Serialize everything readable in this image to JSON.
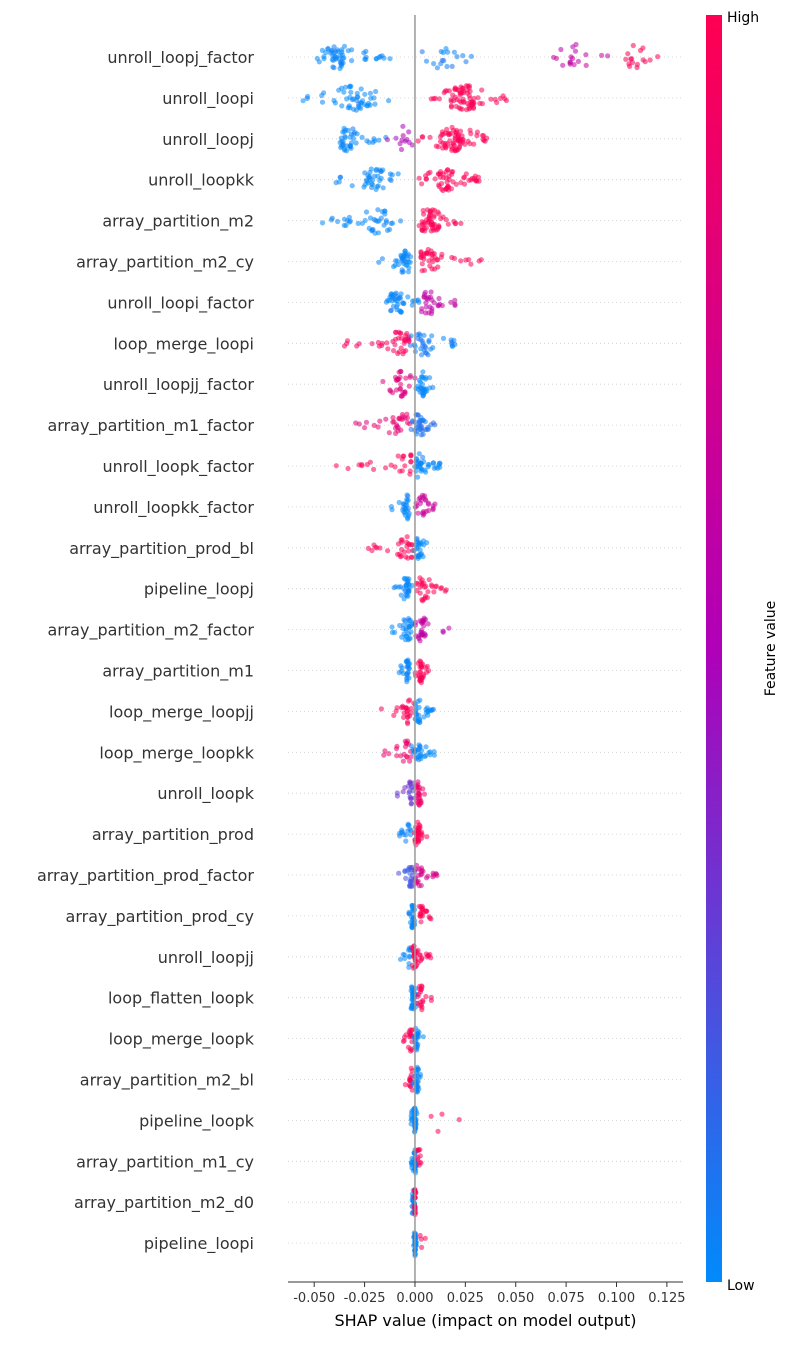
{
  "chart_data": {
    "type": "scatter",
    "subtype": "shap-beeswarm",
    "title": "",
    "xlabel": "SHAP value (impact on model output)",
    "ylabel": "",
    "xlim": [
      -0.063,
      0.133
    ],
    "x_ticks": [
      "-0.050",
      "-0.025",
      "0.000",
      "0.025",
      "0.050",
      "0.075",
      "0.100",
      "0.125"
    ],
    "x_tick_values": [
      -0.05,
      -0.025,
      0.0,
      0.025,
      0.05,
      0.075,
      0.1,
      0.125
    ],
    "zero_line": 0.0,
    "colorbar": {
      "label": "Feature value",
      "high_label": "High",
      "low_label": "Low",
      "low_color": "#008bfb",
      "high_color": "#ff0052",
      "mid_color": "#b000b8"
    },
    "features": [
      {
        "name": "unroll_loopj_factor",
        "ranges": [
          {
            "xmin": -0.053,
            "xmax": -0.012,
            "value": 0.0,
            "dense": -0.039,
            "n": 55
          },
          {
            "xmin": 0.002,
            "xmax": 0.03,
            "value": 0.05,
            "dense": 0.014,
            "n": 18
          },
          {
            "xmin": 0.066,
            "xmax": 0.1,
            "value": 0.6,
            "dense": 0.08,
            "n": 18
          },
          {
            "xmin": 0.1,
            "xmax": 0.125,
            "value": 1.0,
            "dense": 0.11,
            "n": 16
          }
        ]
      },
      {
        "name": "unroll_loopi",
        "ranges": [
          {
            "xmin": -0.056,
            "xmax": -0.013,
            "value": 0.0,
            "dense": -0.03,
            "n": 50
          },
          {
            "xmin": 0.006,
            "xmax": 0.048,
            "value": 1.0,
            "dense": 0.025,
            "n": 75
          }
        ]
      },
      {
        "name": "unroll_loopj",
        "ranges": [
          {
            "xmin": -0.04,
            "xmax": -0.014,
            "value": 0.0,
            "dense": -0.033,
            "n": 40
          },
          {
            "xmin": -0.014,
            "xmax": 0.0,
            "value": 0.5,
            "dense": -0.006,
            "n": 12
          },
          {
            "xmin": 0.0,
            "xmax": 0.036,
            "value": 1.0,
            "dense": 0.02,
            "n": 75
          }
        ]
      },
      {
        "name": "unroll_loopkk",
        "ranges": [
          {
            "xmin": -0.04,
            "xmax": -0.007,
            "value": 0.0,
            "dense": -0.02,
            "n": 40
          },
          {
            "xmin": 0.002,
            "xmax": 0.032,
            "value": 1.0,
            "dense": 0.016,
            "n": 55
          }
        ]
      },
      {
        "name": "array_partition_m2",
        "ranges": [
          {
            "xmin": -0.046,
            "xmax": -0.006,
            "value": 0.0,
            "dense": -0.019,
            "n": 40
          },
          {
            "xmin": 0.001,
            "xmax": 0.025,
            "value": 1.0,
            "dense": 0.007,
            "n": 55
          }
        ]
      },
      {
        "name": "array_partition_m2_cy",
        "ranges": [
          {
            "xmin": -0.018,
            "xmax": -0.002,
            "value": 0.0,
            "dense": -0.005,
            "n": 35
          },
          {
            "xmin": 0.003,
            "xmax": 0.033,
            "value": 1.0,
            "dense": 0.006,
            "n": 40
          }
        ]
      },
      {
        "name": "unroll_loopi_factor",
        "ranges": [
          {
            "xmin": -0.015,
            "xmax": 0.002,
            "value": 0.0,
            "dense": -0.009,
            "n": 40
          },
          {
            "xmin": 0.002,
            "xmax": 0.024,
            "value": 0.6,
            "dense": 0.007,
            "n": 30
          }
        ]
      },
      {
        "name": "loop_merge_loopi",
        "ranges": [
          {
            "xmin": -0.035,
            "xmax": -0.003,
            "value": 0.95,
            "dense": -0.007,
            "n": 40
          },
          {
            "xmin": -0.003,
            "xmax": 0.024,
            "value": 0.05,
            "dense": 0.005,
            "n": 35
          }
        ]
      },
      {
        "name": "unroll_loopjj_factor",
        "ranges": [
          {
            "xmin": -0.024,
            "xmax": 0.0,
            "value": 0.8,
            "dense": -0.007,
            "n": 30
          },
          {
            "xmin": 0.0,
            "xmax": 0.01,
            "value": 0.0,
            "dense": 0.004,
            "n": 30
          }
        ]
      },
      {
        "name": "array_partition_m1_factor",
        "ranges": [
          {
            "xmin": -0.03,
            "xmax": -0.002,
            "value": 0.85,
            "dense": -0.006,
            "n": 30
          },
          {
            "xmin": -0.002,
            "xmax": 0.01,
            "value": 0.1,
            "dense": 0.002,
            "n": 35
          }
        ]
      },
      {
        "name": "unroll_loopk_factor",
        "ranges": [
          {
            "xmin": -0.04,
            "xmax": -0.002,
            "value": 1.0,
            "dense": -0.005,
            "n": 25
          },
          {
            "xmin": -0.002,
            "xmax": 0.013,
            "value": 0.0,
            "dense": 0.002,
            "n": 35
          }
        ]
      },
      {
        "name": "unroll_loopkk_factor",
        "ranges": [
          {
            "xmin": -0.014,
            "xmax": -0.002,
            "value": 0.0,
            "dense": -0.004,
            "n": 25
          },
          {
            "xmin": 0.0,
            "xmax": 0.01,
            "value": 0.65,
            "dense": 0.004,
            "n": 25
          }
        ]
      },
      {
        "name": "array_partition_prod_bl",
        "ranges": [
          {
            "xmin": -0.024,
            "xmax": -0.001,
            "value": 1.0,
            "dense": -0.005,
            "n": 30
          },
          {
            "xmin": -0.001,
            "xmax": 0.01,
            "value": 0.0,
            "dense": 0.002,
            "n": 25
          }
        ]
      },
      {
        "name": "pipeline_loopj",
        "ranges": [
          {
            "xmin": -0.011,
            "xmax": 0.0,
            "value": 0.0,
            "dense": -0.004,
            "n": 30
          },
          {
            "xmin": 0.0,
            "xmax": 0.016,
            "value": 1.0,
            "dense": 0.004,
            "n": 30
          }
        ]
      },
      {
        "name": "array_partition_m2_factor",
        "ranges": [
          {
            "xmin": -0.012,
            "xmax": 0.0,
            "value": 0.0,
            "dense": -0.004,
            "n": 30
          },
          {
            "xmin": 0.0,
            "xmax": 0.018,
            "value": 0.6,
            "dense": 0.004,
            "n": 30
          }
        ]
      },
      {
        "name": "array_partition_m1",
        "ranges": [
          {
            "xmin": -0.008,
            "xmax": -0.002,
            "value": 0.0,
            "dense": -0.004,
            "n": 25
          },
          {
            "xmin": 0.0,
            "xmax": 0.007,
            "value": 1.0,
            "dense": 0.003,
            "n": 30
          }
        ]
      },
      {
        "name": "loop_merge_loopjj",
        "ranges": [
          {
            "xmin": -0.017,
            "xmax": 0.0,
            "value": 1.0,
            "dense": -0.004,
            "n": 25
          },
          {
            "xmin": 0.0,
            "xmax": 0.01,
            "value": 0.0,
            "dense": 0.002,
            "n": 30
          }
        ]
      },
      {
        "name": "loop_merge_loopkk",
        "ranges": [
          {
            "xmin": -0.016,
            "xmax": -0.002,
            "value": 0.9,
            "dense": -0.004,
            "n": 20
          },
          {
            "xmin": -0.002,
            "xmax": 0.01,
            "value": 0.0,
            "dense": 0.002,
            "n": 30
          }
        ]
      },
      {
        "name": "unroll_loopk",
        "ranges": [
          {
            "xmin": -0.009,
            "xmax": 0.0,
            "value": 0.3,
            "dense": -0.002,
            "n": 20
          },
          {
            "xmin": 0.0,
            "xmax": 0.005,
            "value": 0.9,
            "dense": 0.002,
            "n": 25
          }
        ]
      },
      {
        "name": "array_partition_prod",
        "ranges": [
          {
            "xmin": -0.008,
            "xmax": -0.002,
            "value": 0.0,
            "dense": -0.003,
            "n": 15
          },
          {
            "xmin": -0.002,
            "xmax": 0.006,
            "value": 1.0,
            "dense": 0.001,
            "n": 35
          }
        ]
      },
      {
        "name": "array_partition_prod_factor",
        "ranges": [
          {
            "xmin": -0.009,
            "xmax": 0.0,
            "value": 0.2,
            "dense": -0.002,
            "n": 25
          },
          {
            "xmin": 0.0,
            "xmax": 0.011,
            "value": 0.75,
            "dense": 0.002,
            "n": 25
          }
        ]
      },
      {
        "name": "array_partition_prod_cy",
        "ranges": [
          {
            "xmin": -0.003,
            "xmax": 0.001,
            "value": 0.0,
            "dense": -0.001,
            "n": 30
          },
          {
            "xmin": 0.001,
            "xmax": 0.009,
            "value": 1.0,
            "dense": 0.003,
            "n": 20
          }
        ]
      },
      {
        "name": "unroll_loopjj",
        "ranges": [
          {
            "xmin": -0.009,
            "xmax": -0.002,
            "value": 0.0,
            "dense": -0.003,
            "n": 12
          },
          {
            "xmin": -0.002,
            "xmax": 0.008,
            "value": 1.0,
            "dense": 0.0,
            "n": 35
          }
        ]
      },
      {
        "name": "loop_flatten_loopk",
        "ranges": [
          {
            "xmin": -0.002,
            "xmax": 0.001,
            "value": 0.0,
            "dense": -0.001,
            "n": 35
          },
          {
            "xmin": 0.001,
            "xmax": 0.01,
            "value": 1.0,
            "dense": 0.003,
            "n": 20
          }
        ]
      },
      {
        "name": "loop_merge_loopk",
        "ranges": [
          {
            "xmin": -0.007,
            "xmax": -0.001,
            "value": 1.0,
            "dense": -0.002,
            "n": 20
          },
          {
            "xmin": -0.001,
            "xmax": 0.005,
            "value": 0.0,
            "dense": 0.001,
            "n": 25
          }
        ]
      },
      {
        "name": "array_partition_m2_bl",
        "ranges": [
          {
            "xmin": -0.008,
            "xmax": -0.001,
            "value": 1.0,
            "dense": -0.002,
            "n": 15
          },
          {
            "xmin": -0.001,
            "xmax": 0.003,
            "value": 0.0,
            "dense": 0.001,
            "n": 30
          }
        ]
      },
      {
        "name": "pipeline_loopk",
        "ranges": [
          {
            "xmin": -0.002,
            "xmax": 0.001,
            "value": 0.0,
            "dense": 0.0,
            "n": 40
          },
          {
            "xmin": 0.008,
            "xmax": 0.03,
            "value": 1.0,
            "dense": 0.01,
            "n": 4
          }
        ]
      },
      {
        "name": "array_partition_m1_cy",
        "ranges": [
          {
            "xmin": -0.002,
            "xmax": 0.001,
            "value": 0.0,
            "dense": 0.0,
            "n": 30
          },
          {
            "xmin": 0.001,
            "xmax": 0.004,
            "value": 1.0,
            "dense": 0.002,
            "n": 10
          }
        ]
      },
      {
        "name": "array_partition_m2_d0",
        "ranges": [
          {
            "xmin": -0.002,
            "xmax": 0.0,
            "value": 0.0,
            "dense": -0.001,
            "n": 20
          },
          {
            "xmin": -0.001,
            "xmax": 0.001,
            "value": 1.0,
            "dense": 0.0,
            "n": 20
          }
        ]
      },
      {
        "name": "pipeline_loopi",
        "ranges": [
          {
            "xmin": -0.001,
            "xmax": 0.001,
            "value": 0.0,
            "dense": 0.0,
            "n": 35
          },
          {
            "xmin": 0.002,
            "xmax": 0.006,
            "value": 1.0,
            "dense": 0.003,
            "n": 4
          }
        ]
      }
    ]
  }
}
